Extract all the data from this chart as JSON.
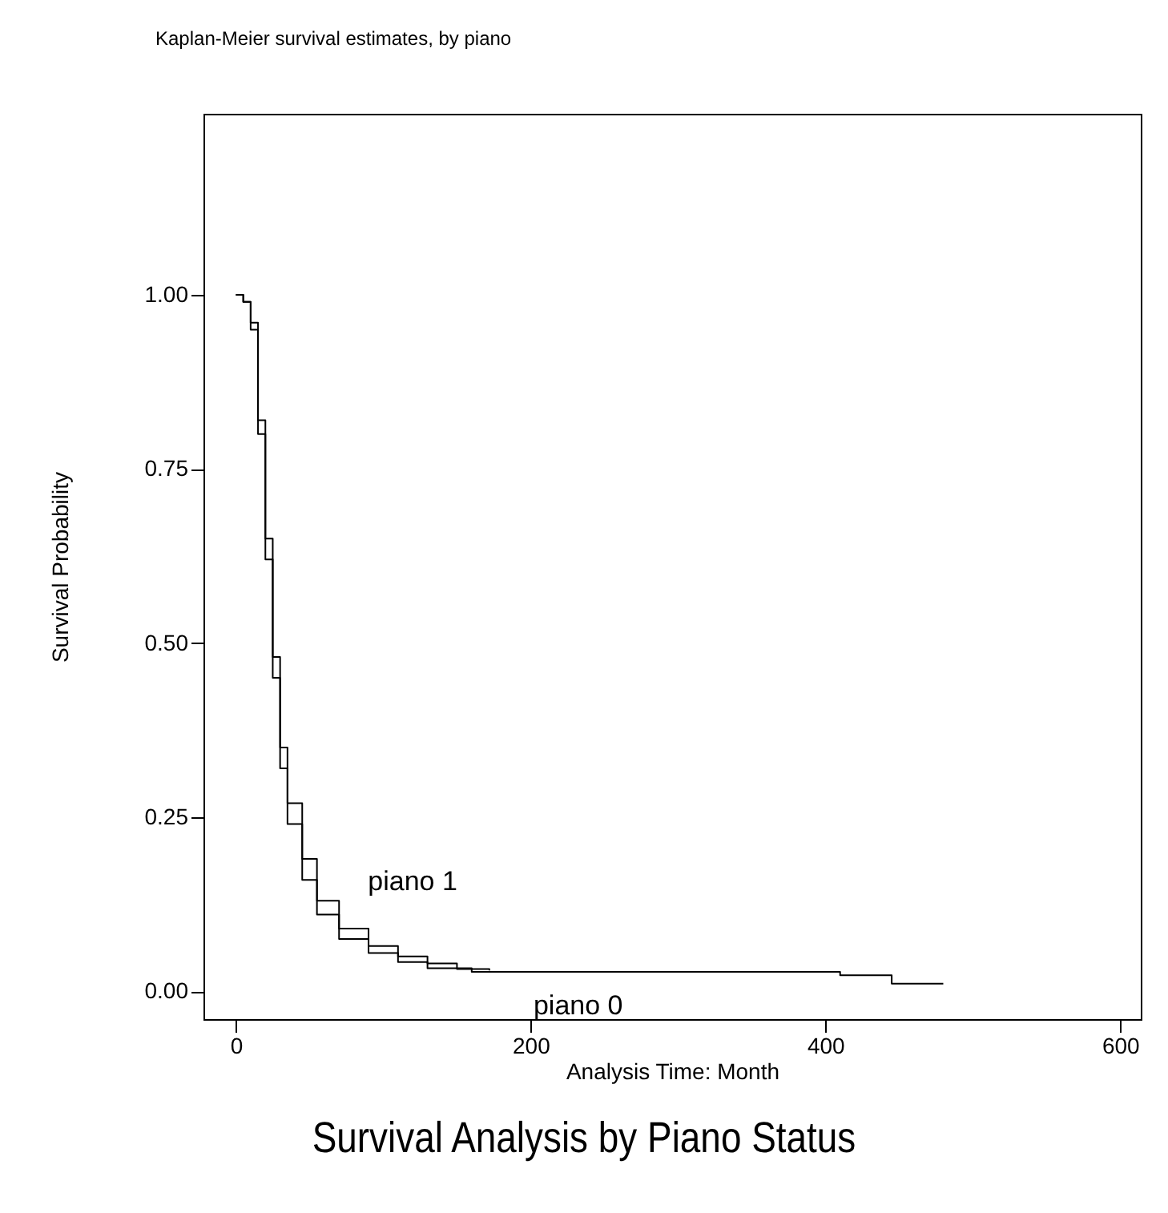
{
  "chart_data": {
    "type": "step",
    "title": "Kaplan-Meier survival estimates, by piano",
    "xlabel": "Analysis Time: Month",
    "ylabel": "Survival Probability",
    "annotations": [
      "Survival Analysis by Piano Status"
    ],
    "series": [
      {
        "name": "piano 0",
        "color": "#000000",
        "x": [
          0,
          5,
          10,
          15,
          20,
          25,
          30,
          35,
          45,
          55,
          70,
          90,
          110,
          130,
          160,
          410,
          445,
          480
        ],
        "values": [
          1,
          0.99,
          0.95,
          0.8,
          0.62,
          0.45,
          0.32,
          0.24,
          0.16,
          0.11,
          0.075,
          0.055,
          0.042,
          0.033,
          0.028,
          0.023,
          0.011,
          0.011
        ]
      },
      {
        "name": "piano 1",
        "color": "#000000",
        "x": [
          0,
          5,
          10,
          15,
          20,
          25,
          30,
          35,
          45,
          55,
          70,
          90,
          110,
          130,
          150,
          172
        ],
        "values": [
          1,
          0.99,
          0.96,
          0.82,
          0.65,
          0.48,
          0.35,
          0.27,
          0.19,
          0.13,
          0.09,
          0.065,
          0.05,
          0.04,
          0.032,
          0.03
        ]
      }
    ],
    "xlim": [
      -22,
      614
    ],
    "xticks": [
      0,
      200,
      400,
      600
    ],
    "ylim": [
      -0.04,
      1.26
    ],
    "yticks": [
      {
        "value": 0,
        "label": "0.00"
      },
      {
        "value": 0.25,
        "label": "0.25"
      },
      {
        "value": 0.5,
        "label": "0.50"
      },
      {
        "value": 0.75,
        "label": "0.75"
      },
      {
        "value": 1,
        "label": "1.00"
      }
    ],
    "grid": false
  }
}
